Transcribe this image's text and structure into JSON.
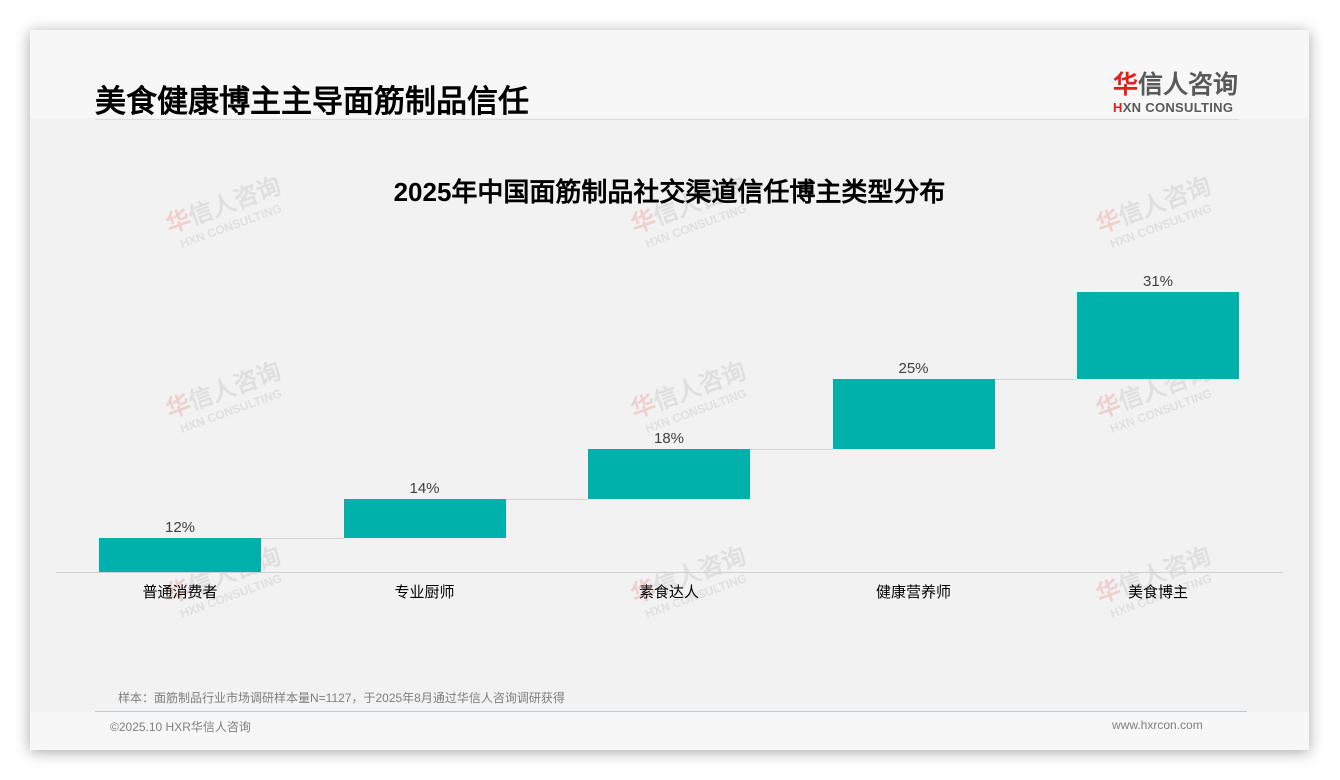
{
  "header": {
    "title": "美食健康博主主导面筋制品信任",
    "logo": {
      "cn_mark": "华",
      "cn_rest": "信人咨询",
      "en_mark": "H",
      "en_rest": "XN CONSULTING"
    }
  },
  "watermark": {
    "cn_mark": "华",
    "cn_rest": "信人咨询",
    "en": "HXN CONSULTING"
  },
  "chart_data": {
    "type": "bar",
    "subtype": "waterfall",
    "title": "2025年中国面筋制品社交渠道信任博主类型分布",
    "categories": [
      "普通消费者",
      "专业厨师",
      "素食达人",
      "健康营养师",
      "美食博主"
    ],
    "values": [
      12,
      14,
      18,
      25,
      31
    ],
    "value_labels": [
      "12%",
      "14%",
      "18%",
      "25%",
      "31%"
    ],
    "cumulative_start": [
      0,
      12,
      26,
      44,
      69
    ],
    "unit": "%",
    "xlabel": "",
    "ylabel": "",
    "ylim": [
      0,
      100
    ],
    "grid": false,
    "legend": "none",
    "bar_color": "#00b0aa"
  },
  "footer": {
    "note": "样本：面筋制品行业市场调研样本量N=1127，于2025年8月通过华信人咨询调研获得",
    "copyright": "©2025.10 HXR华信人咨询",
    "website": "www.hxrcon.com"
  }
}
